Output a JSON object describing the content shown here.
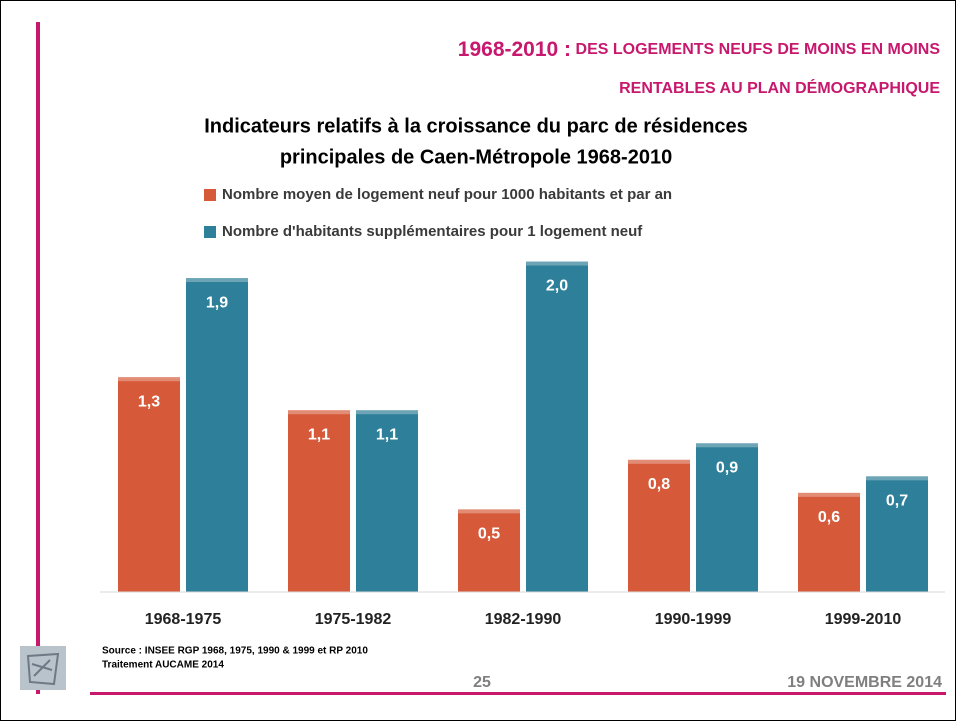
{
  "slide": {
    "heading": [
      "1968-2010 :",
      "DES LOGEMENTS NEUFS DE MOINS EN MOINS",
      "RENTABLES AU PLAN DÉMOGRAPHIQUE"
    ],
    "source": [
      "Source : INSEE  RGP 1968, 1975, 1990 & 1999 et RP 2010",
      "Traitement AUCAME 2014"
    ],
    "page": "25",
    "date": "19 NOVEMBRE 2014"
  },
  "chart_data": {
    "type": "bar",
    "title": [
      "Indicateurs relatifs à la croissance du parc de résidences",
      "principales de Caen-Métropole 1968-2010"
    ],
    "categories": [
      "1968-1975",
      "1975-1982",
      "1982-1990",
      "1990-1999",
      "1999-2010"
    ],
    "series": [
      {
        "name": "Nombre moyen de logement neuf pour 1000 habitants et par an",
        "color": "#d65a3a",
        "values": [
          1.3,
          1.1,
          0.5,
          0.8,
          0.6
        ],
        "value_labels": [
          "1,3",
          "1,1",
          "0,5",
          "0,8",
          "0,6"
        ]
      },
      {
        "name": "Nombre d'habitants supplémentaires pour 1 logement neuf",
        "color": "#2e7f99",
        "values": [
          1.9,
          1.1,
          2.0,
          0.9,
          0.7
        ],
        "value_labels": [
          "1,9",
          "1,1",
          "2,0",
          "0,9",
          "0,7"
        ]
      }
    ],
    "ylim": [
      0,
      2.1
    ]
  }
}
